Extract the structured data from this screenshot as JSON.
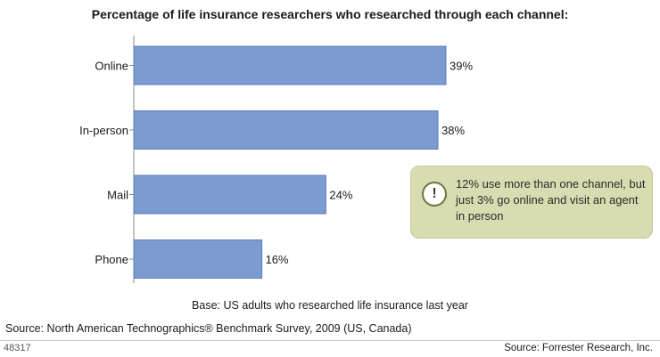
{
  "chart_data": {
    "type": "bar",
    "orientation": "horizontal",
    "title": "Percentage of life insurance researchers who researched through each channel:",
    "categories": [
      "Online",
      "In-person",
      "Mail",
      "Phone"
    ],
    "values": [
      39,
      38,
      24,
      16
    ],
    "value_labels": [
      "39%",
      "38%",
      "24%",
      "16%"
    ],
    "unit": "%",
    "xlim": [
      0,
      45
    ],
    "grid": false,
    "bar_color": "#7b9bd1"
  },
  "callout": {
    "icon": "exclamation-icon",
    "text": "12% use more than one channel, but just 3% go online and visit an agent in person"
  },
  "base_note": "Base: US adults who researched life insurance last year",
  "source": "Source: North American Technographics® Benchmark Survey, 2009 (US, Canada)",
  "footer": {
    "id": "48317",
    "source": "Source: Forrester Research, Inc."
  }
}
